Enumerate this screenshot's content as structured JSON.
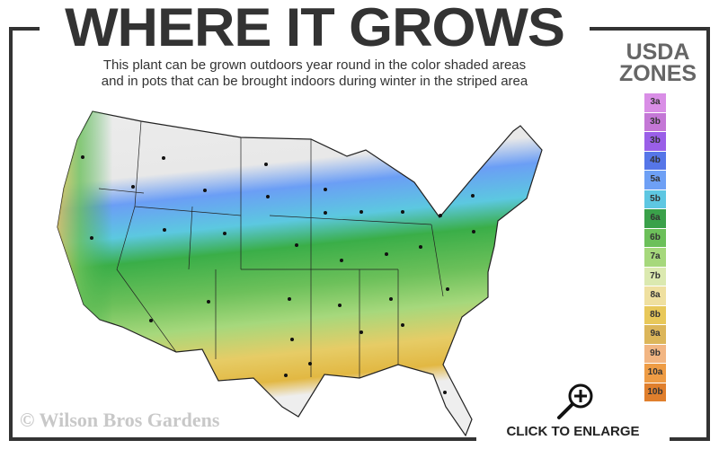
{
  "header": {
    "title": "WHERE IT GROWS",
    "subtitle_line1": "This plant can be grown outdoors year round in the color shaded areas",
    "subtitle_line2": "and in pots that can be brought indoors during winter in the striped area"
  },
  "legend": {
    "title_line1": "USDA",
    "title_line2": "ZONES",
    "zones": [
      {
        "label": "3a",
        "color": "#d98ee6"
      },
      {
        "label": "3b",
        "color": "#c477d6"
      },
      {
        "label": "3b",
        "color": "#9a5fe8"
      },
      {
        "label": "4b",
        "color": "#5676e8"
      },
      {
        "label": "5a",
        "color": "#6ea0f5"
      },
      {
        "label": "5b",
        "color": "#5ec7e2"
      },
      {
        "label": "6a",
        "color": "#3aa14a"
      },
      {
        "label": "6b",
        "color": "#6cc05a"
      },
      {
        "label": "7a",
        "color": "#a6d87c"
      },
      {
        "label": "7b",
        "color": "#dbe9b0"
      },
      {
        "label": "8a",
        "color": "#efe0a0"
      },
      {
        "label": "8b",
        "color": "#e8c85a"
      },
      {
        "label": "9a",
        "color": "#dcb65a"
      },
      {
        "label": "9b",
        "color": "#f2b683"
      },
      {
        "label": "10a",
        "color": "#ee9c45"
      },
      {
        "label": "10b",
        "color": "#e07f2d"
      }
    ]
  },
  "watermark": "© Wilson Bros Gardens",
  "enlarge": {
    "label": "CLICK TO ENLARGE",
    "icon": "zoom-in-icon"
  }
}
